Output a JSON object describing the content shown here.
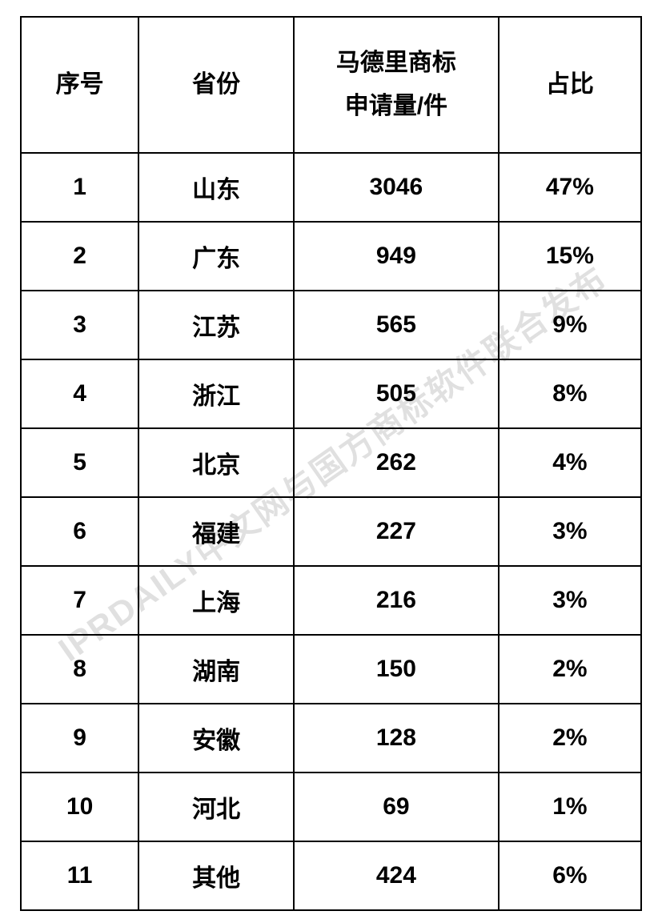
{
  "table": {
    "columns": [
      {
        "key": "rank",
        "label": "序号",
        "width": "19%"
      },
      {
        "key": "province",
        "label": "省份",
        "width": "25%"
      },
      {
        "key": "amount",
        "label_line1": "马德里商标",
        "label_line2": "申请量/件",
        "width": "33%"
      },
      {
        "key": "percent",
        "label": "占比",
        "width": "23%"
      }
    ],
    "rows": [
      {
        "rank": "1",
        "province": "山东",
        "amount": "3046",
        "percent": "47%"
      },
      {
        "rank": "2",
        "province": "广东",
        "amount": "949",
        "percent": "15%"
      },
      {
        "rank": "3",
        "province": "江苏",
        "amount": "565",
        "percent": "9%"
      },
      {
        "rank": "4",
        "province": "浙江",
        "amount": "505",
        "percent": "8%"
      },
      {
        "rank": "5",
        "province": "北京",
        "amount": "262",
        "percent": "4%"
      },
      {
        "rank": "6",
        "province": "福建",
        "amount": "227",
        "percent": "3%"
      },
      {
        "rank": "7",
        "province": "上海",
        "amount": "216",
        "percent": "3%"
      },
      {
        "rank": "8",
        "province": "湖南",
        "amount": "150",
        "percent": "2%"
      },
      {
        "rank": "9",
        "province": "安徽",
        "amount": "128",
        "percent": "2%"
      },
      {
        "rank": "10",
        "province": "河北",
        "amount": "69",
        "percent": "1%"
      },
      {
        "rank": "11",
        "province": "其他",
        "amount": "424",
        "percent": "6%"
      }
    ],
    "border_color": "#000000",
    "text_color": "#000000",
    "background_color": "#ffffff",
    "header_fontsize": 30,
    "cell_fontsize": 30,
    "font_weight": "bold"
  },
  "watermark": {
    "text": "IPRDAILY中文网与国方商标软件联合发布",
    "color": "rgba(0,0,0,0.12)",
    "rotation_deg": -35,
    "fontsize": 42
  }
}
